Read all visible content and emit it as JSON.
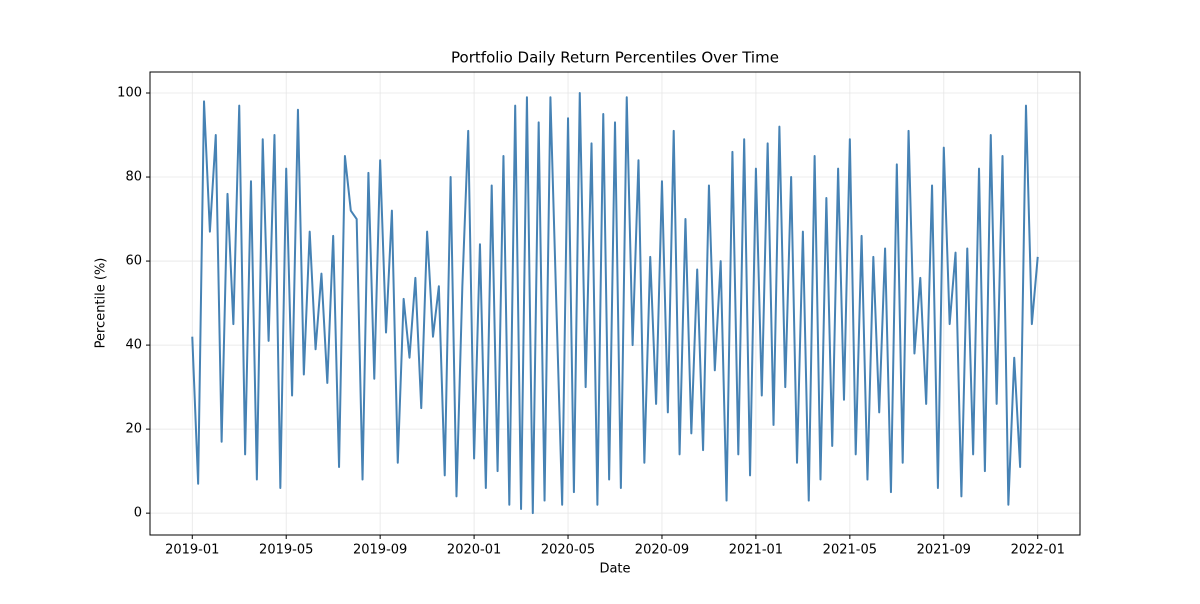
{
  "chart_data": {
    "type": "line",
    "title": "Portfolio Daily Return Percentiles Over Time",
    "x_label": "Date",
    "y_label": "Percentile (%)",
    "color": "#4682b4",
    "grid": true,
    "x": [
      0,
      0.25,
      0.5,
      0.75,
      1,
      1.25,
      1.5,
      1.75,
      2,
      2.25,
      2.5,
      2.75,
      3,
      3.25,
      3.5,
      3.75,
      4,
      4.25,
      4.5,
      4.75,
      5,
      5.25,
      5.5,
      5.75,
      6,
      6.25,
      6.5,
      6.75,
      7,
      7.25,
      7.5,
      7.75,
      8,
      8.25,
      8.5,
      8.75,
      9,
      9.25,
      9.5,
      9.75,
      10,
      10.25,
      10.5,
      10.75,
      11,
      11.25,
      11.5,
      11.75,
      12,
      12.25,
      12.5,
      12.75,
      13,
      13.25,
      13.5,
      13.75,
      14,
      14.25,
      14.5,
      14.75,
      15,
      15.25,
      15.5,
      15.75,
      16,
      16.25,
      16.5,
      16.75,
      17,
      17.25,
      17.5,
      17.75,
      18,
      18.25,
      18.5,
      18.75,
      19,
      19.25,
      19.5,
      19.75,
      20,
      20.25,
      20.5,
      20.75,
      21,
      21.25,
      21.5,
      21.75,
      22,
      22.25,
      22.5,
      22.75,
      23,
      23.25,
      23.5,
      23.75,
      24,
      24.25,
      24.5,
      24.75,
      25,
      25.25,
      25.5,
      25.75,
      26,
      26.25,
      26.5,
      26.75,
      27,
      27.25,
      27.5,
      27.75,
      28,
      28.25,
      28.5,
      28.75,
      29,
      29.25,
      29.5,
      29.75,
      30,
      30.25,
      30.5,
      30.75,
      31,
      31.25,
      31.5,
      31.75,
      32,
      32.25,
      32.5,
      32.75,
      33,
      33.25,
      33.5,
      33.75,
      34,
      34.25,
      34.5,
      34.75,
      35,
      35.25,
      35.5,
      35.75,
      36
    ],
    "values": [
      42,
      7,
      98,
      67,
      90,
      17,
      76,
      45,
      97,
      14,
      79,
      8,
      89,
      41,
      90,
      6,
      82,
      28,
      96,
      33,
      67,
      39,
      57,
      31,
      66,
      11,
      85,
      72,
      70,
      8,
      81,
      32,
      84,
      43,
      72,
      12,
      51,
      37,
      56,
      25,
      67,
      42,
      54,
      9,
      80,
      4,
      54,
      91,
      13,
      64,
      6,
      78,
      10,
      85,
      2,
      97,
      1,
      99,
      0,
      93,
      3,
      99,
      50,
      2,
      94,
      5,
      100,
      30,
      88,
      2,
      95,
      8,
      93,
      6,
      99,
      40,
      84,
      12,
      61,
      26,
      79,
      24,
      91,
      14,
      70,
      19,
      58,
      15,
      78,
      34,
      60,
      3,
      86,
      14,
      89,
      9,
      82,
      28,
      88,
      21,
      92,
      30,
      80,
      12,
      67,
      3,
      85,
      8,
      75,
      16,
      82,
      27,
      89,
      14,
      66,
      8,
      61,
      24,
      63,
      5,
      83,
      12,
      91,
      38,
      56,
      26,
      78,
      6,
      87,
      45,
      62,
      4,
      63,
      14,
      82,
      10,
      90,
      26,
      85,
      2,
      37,
      11,
      97,
      45,
      61
    ],
    "xlim": [
      -1.8,
      37.8
    ],
    "xticks": [
      {
        "value": 0,
        "label": "2019-01"
      },
      {
        "value": 4,
        "label": "2019-05"
      },
      {
        "value": 8,
        "label": "2019-09"
      },
      {
        "value": 12,
        "label": "2020-01"
      },
      {
        "value": 16,
        "label": "2020-05"
      },
      {
        "value": 20,
        "label": "2020-09"
      },
      {
        "value": 24,
        "label": "2021-01"
      },
      {
        "value": 28,
        "label": "2021-05"
      },
      {
        "value": 32,
        "label": "2021-09"
      },
      {
        "value": 36,
        "label": "2022-01"
      }
    ],
    "ylim": [
      -5.2,
      105
    ],
    "yticks": [
      0,
      20,
      40,
      60,
      80,
      100
    ]
  }
}
